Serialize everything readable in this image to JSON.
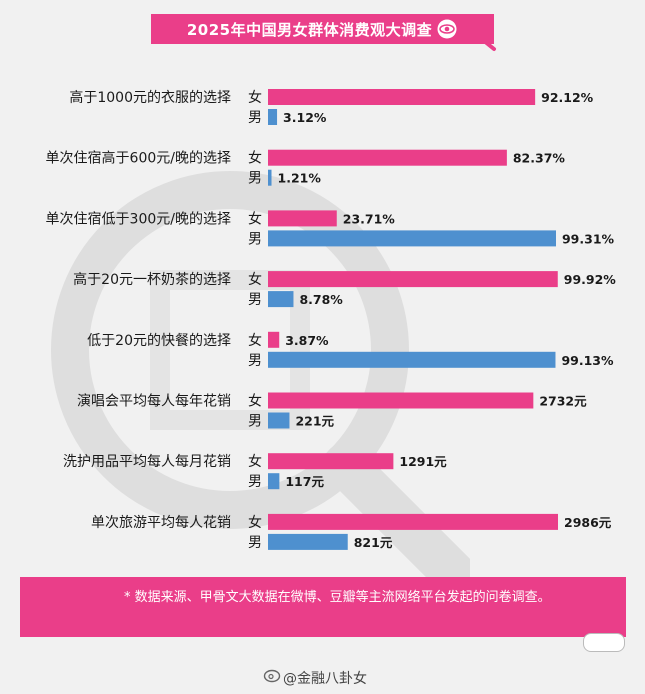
{
  "title": "2025年中国男女群体消费观大调查",
  "colors": {
    "female": "#ea3e89",
    "male": "#4e90cf",
    "accent": "#ea3e89"
  },
  "chart_data": {
    "type": "bar",
    "orientation": "horizontal",
    "title": "2025年中国男女群体消费观大调查",
    "categories": [
      "高于1000元的衣服的选择",
      "单次住宿高于600元/晚的选择",
      "单次住宿低于300元/晚的选择",
      "高于20元一杯奶茶的选择",
      "低于20元的快餐的选择",
      "演唱会平均每人每年花销",
      "洗护用品平均每人每月花销",
      "单次旅游平均每人花销"
    ],
    "series": [
      {
        "name": "女",
        "values": [
          92.12,
          82.37,
          23.71,
          99.92,
          3.87,
          2732,
          1291,
          2986
        ],
        "labels": [
          "92.12%",
          "82.37%",
          "23.71%",
          "99.92%",
          "3.87%",
          "2732元",
          "1291元",
          "2986元"
        ]
      },
      {
        "name": "男",
        "values": [
          3.12,
          1.21,
          99.31,
          8.78,
          99.13,
          221,
          117,
          821
        ],
        "labels": [
          "3.12%",
          "1.21%",
          "99.31%",
          "8.78%",
          "99.13%",
          "221元",
          "117元",
          "821元"
        ]
      }
    ],
    "units": [
      "%",
      "%",
      "%",
      "%",
      "%",
      "元",
      "元",
      "元"
    ],
    "xlim_percent": [
      0,
      100
    ],
    "xlim_yuan": [
      0,
      2986
    ],
    "grid": false,
    "legend": "none"
  },
  "footer": {
    "note": "* 数据来源、甲骨文大数据在微博、豆瓣等主流网络平台发起的问卷调查。"
  },
  "source": {
    "text": "@金融八卦女"
  },
  "icons": {
    "title_icon": "eye-icon",
    "source_icon": "weibo-icon"
  }
}
